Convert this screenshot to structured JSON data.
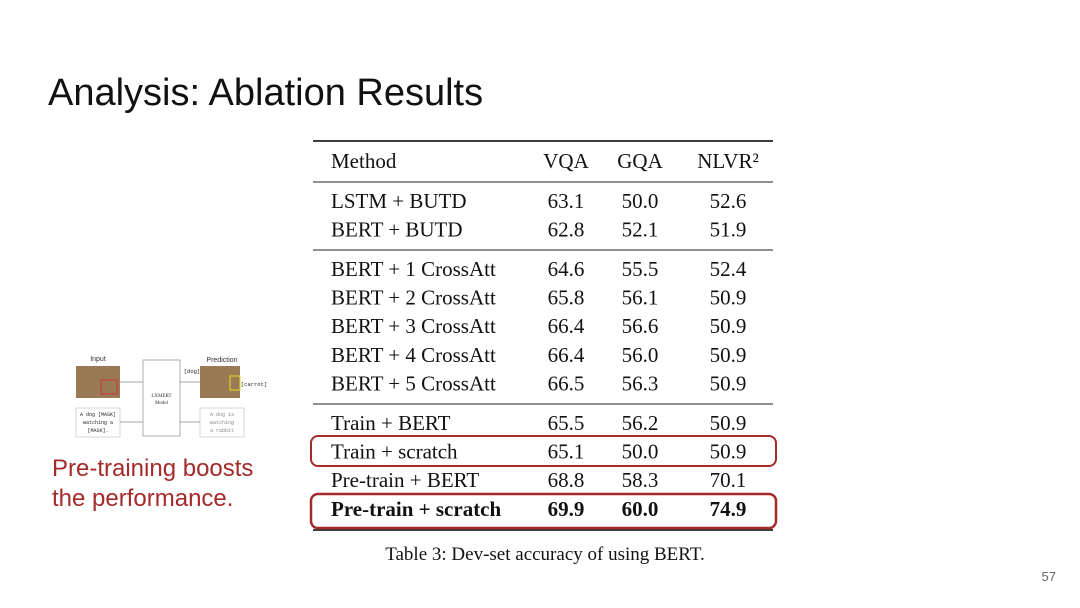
{
  "header": {
    "title": "Analysis: Ablation Results",
    "page_number": "57"
  },
  "table": {
    "columns": [
      "Method",
      "VQA",
      "GQA",
      "NLVR²"
    ],
    "groups": [
      [
        [
          "LSTM + BUTD",
          "63.1",
          "50.0",
          "52.6"
        ],
        [
          "BERT + BUTD",
          "62.8",
          "52.1",
          "51.9"
        ]
      ],
      [
        [
          "BERT + 1 CrossAtt",
          "64.6",
          "55.5",
          "52.4"
        ],
        [
          "BERT + 2 CrossAtt",
          "65.8",
          "56.1",
          "50.9"
        ],
        [
          "BERT + 3 CrossAtt",
          "66.4",
          "56.6",
          "50.9"
        ],
        [
          "BERT + 4 CrossAtt",
          "66.4",
          "56.0",
          "50.9"
        ],
        [
          "BERT + 5 CrossAtt",
          "66.5",
          "56.3",
          "50.9"
        ]
      ],
      [
        [
          "Train + BERT",
          "65.5",
          "56.2",
          "50.9"
        ],
        [
          "Train + scratch",
          "65.1",
          "50.0",
          "50.9"
        ],
        [
          "Pre-train + BERT",
          "68.8",
          "58.3",
          "70.1"
        ],
        [
          "Pre-train + scratch",
          "69.9",
          "60.0",
          "74.9"
        ]
      ]
    ],
    "caption": "Table 3: Dev-set accuracy of using BERT."
  },
  "diagram": {
    "input_label": "Input",
    "prediction_label": "Prediction",
    "model_label": [
      "LXMERT",
      "Model"
    ],
    "input_text": [
      "A dog [MASK]",
      "watching a",
      "[MASK]."
    ],
    "output_text": [
      "A dog is",
      "watching",
      "a rabbit"
    ],
    "predictions": [
      "[dog]",
      "[carrot]"
    ]
  },
  "note": [
    "Pre-training boosts",
    "the performance."
  ]
}
